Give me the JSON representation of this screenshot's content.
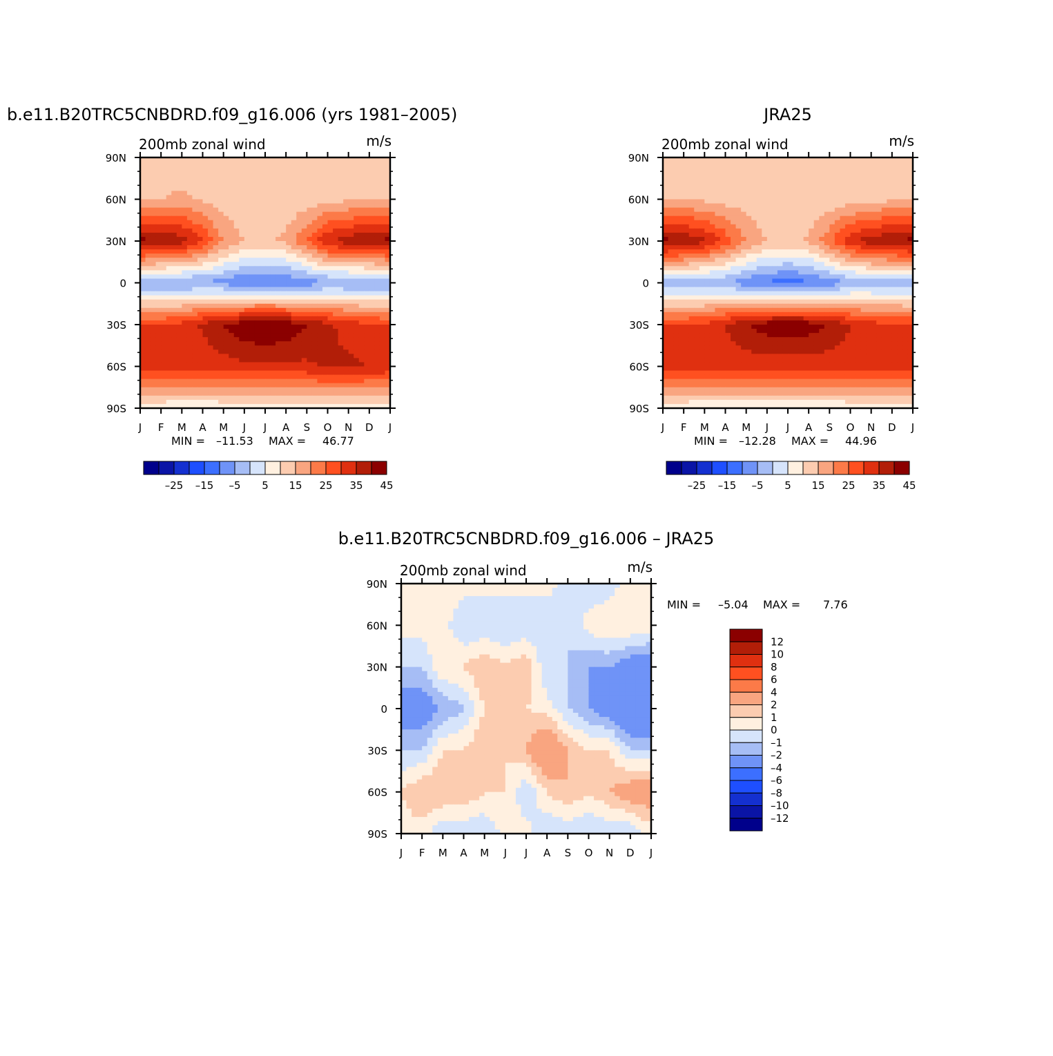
{
  "palette": {
    "colors": [
      "#00008b",
      "#0a14a6",
      "#1430d0",
      "#1e4fff",
      "#3c6fff",
      "#6f93f7",
      "#a6bdf5",
      "#d6e4fb",
      "#fff0e0",
      "#fcccb0",
      "#f9a580",
      "#fc7a48",
      "#ff5020",
      "#e03010",
      "#b21e08",
      "#8b0000"
    ]
  },
  "common": {
    "subtitle": "200mb zonal wind",
    "units": "m/s",
    "lat_labels": [
      "90N",
      "60N",
      "30N",
      "0",
      "30S",
      "60S",
      "90S"
    ],
    "month_labels": [
      "J",
      "F",
      "M",
      "A",
      "M",
      "J",
      "J",
      "A",
      "S",
      "O",
      "N",
      "D",
      "J"
    ],
    "min_label": "MIN =",
    "max_label": "MAX ="
  },
  "panels": [
    {
      "title": "b.e11.B20TRC5CNBDRD.f09_g16.006 (yrs 1981–2005)",
      "min": "–11.53",
      "max": "46.77",
      "colorbar_labels": [
        "–25",
        "–15",
        "–5",
        "5",
        "15",
        "25",
        "35",
        "45"
      ]
    },
    {
      "title": "JRA25",
      "min": "–12.28",
      "max": "44.96",
      "colorbar_labels": [
        "–25",
        "–15",
        "–5",
        "5",
        "15",
        "25",
        "35",
        "45"
      ]
    },
    {
      "title": "b.e11.B20TRC5CNBDRD.f09_g16.006 – JRA25",
      "min": "–5.04",
      "max": "7.76",
      "colorbar_labels": [
        "12",
        "10",
        "8",
        "6",
        "4",
        "2",
        "1",
        "0",
        "–1",
        "–2",
        "–4",
        "–6",
        "–8",
        "–10",
        "–12"
      ]
    }
  ],
  "chart_data": [
    {
      "type": "heatmap",
      "title": "b.e11.B20TRC5CNBDRD.f09_g16.006 (yrs 1981–2005)",
      "subtitle": "200mb zonal wind",
      "units": "m/s",
      "x": [
        "J",
        "F",
        "M",
        "A",
        "M",
        "J",
        "J",
        "A",
        "S",
        "O",
        "N",
        "D",
        "J"
      ],
      "y": [
        90,
        60,
        30,
        0,
        -30,
        -60,
        -90
      ],
      "levels": [
        -30,
        -25,
        -20,
        -15,
        -10,
        -5,
        0,
        5,
        10,
        15,
        20,
        25,
        30,
        35,
        40,
        45
      ],
      "values": [
        [
          12,
          12,
          12,
          12,
          12,
          12,
          12,
          12,
          12,
          12,
          12,
          12,
          12
        ],
        [
          14,
          15,
          16,
          14,
          12,
          10,
          10,
          11,
          12,
          13,
          14,
          14,
          14
        ],
        [
          42,
          40,
          38,
          30,
          20,
          15,
          14,
          16,
          25,
          35,
          38,
          40,
          42
        ],
        [
          -6,
          -6,
          -6,
          -6,
          -7,
          -10,
          -11,
          -10,
          -8,
          -6,
          -6,
          -6,
          -6
        ],
        [
          30,
          30,
          32,
          36,
          40,
          44,
          46,
          44,
          40,
          36,
          33,
          31,
          30
        ],
        [
          34,
          33,
          32,
          32,
          33,
          34,
          34,
          34,
          34,
          36,
          36,
          35,
          34
        ],
        [
          6,
          6,
          6,
          6,
          6,
          6,
          6,
          6,
          6,
          6,
          6,
          6,
          6
        ]
      ],
      "min": -11.53,
      "max": 46.77
    },
    {
      "type": "heatmap",
      "title": "JRA25",
      "subtitle": "200mb zonal wind",
      "units": "m/s",
      "x": [
        "J",
        "F",
        "M",
        "A",
        "M",
        "J",
        "J",
        "A",
        "S",
        "O",
        "N",
        "D",
        "J"
      ],
      "y": [
        90,
        60,
        30,
        0,
        -30,
        -60,
        -90
      ],
      "levels": [
        -30,
        -25,
        -20,
        -15,
        -10,
        -5,
        0,
        5,
        10,
        15,
        20,
        25,
        30,
        35,
        40,
        45
      ],
      "values": [
        [
          10,
          10,
          10,
          10,
          10,
          10,
          10,
          10,
          10,
          10,
          10,
          10,
          10
        ],
        [
          14,
          14,
          14,
          13,
          12,
          10,
          10,
          10,
          11,
          12,
          13,
          14,
          14
        ],
        [
          42,
          40,
          36,
          28,
          20,
          15,
          14,
          16,
          24,
          34,
          38,
          40,
          42
        ],
        [
          -4,
          -4,
          -5,
          -5,
          -8,
          -11,
          -12,
          -11,
          -8,
          -5,
          -4,
          -4,
          -4
        ],
        [
          30,
          30,
          31,
          35,
          40,
          43,
          44,
          43,
          40,
          35,
          32,
          31,
          30
        ],
        [
          34,
          33,
          32,
          32,
          32,
          32,
          32,
          32,
          32,
          33,
          33,
          33,
          34
        ],
        [
          6,
          6,
          6,
          6,
          6,
          6,
          6,
          6,
          6,
          6,
          6,
          6,
          6
        ]
      ],
      "min": -12.28,
      "max": 44.96
    },
    {
      "type": "heatmap",
      "title": "b.e11.B20TRC5CNBDRD.f09_g16.006 – JRA25",
      "subtitle": "200mb zonal wind",
      "units": "m/s",
      "x": [
        "J",
        "F",
        "M",
        "A",
        "M",
        "J",
        "J",
        "A",
        "S",
        "O",
        "N",
        "D",
        "J"
      ],
      "y": [
        90,
        60,
        30,
        0,
        -30,
        -60,
        -90
      ],
      "levels": [
        -12,
        -10,
        -8,
        -6,
        -4,
        -2,
        -1,
        0,
        1,
        2,
        4,
        6,
        8,
        10,
        12
      ],
      "values": [
        [
          1,
          1,
          1,
          0.5,
          0.5,
          0.5,
          0.5,
          0.5,
          -0.5,
          -1,
          -0.5,
          0.5,
          1
        ],
        [
          0.5,
          0.5,
          0.5,
          -1,
          -1,
          -1,
          -1,
          -1,
          -1,
          0.5,
          1,
          1,
          0.5
        ],
        [
          -1,
          -1,
          1,
          1,
          2,
          1,
          2,
          -1,
          -1,
          -2,
          -2,
          -3,
          -3
        ],
        [
          -3,
          -3,
          -2,
          -1,
          1,
          2,
          1,
          0.5,
          -1,
          -2,
          -3,
          -4,
          -4
        ],
        [
          -1,
          -1,
          1,
          1,
          2,
          1,
          2,
          4,
          2,
          1,
          1,
          -1,
          -1
        ],
        [
          1,
          2,
          2,
          2,
          1,
          1,
          -1,
          1,
          2,
          1,
          2,
          3,
          3
        ],
        [
          0.5,
          0.5,
          -1,
          -1,
          -1,
          0.5,
          0.5,
          -1,
          -1,
          -1,
          -1,
          -1,
          0.5
        ]
      ],
      "min": -5.04,
      "max": 7.76
    }
  ]
}
